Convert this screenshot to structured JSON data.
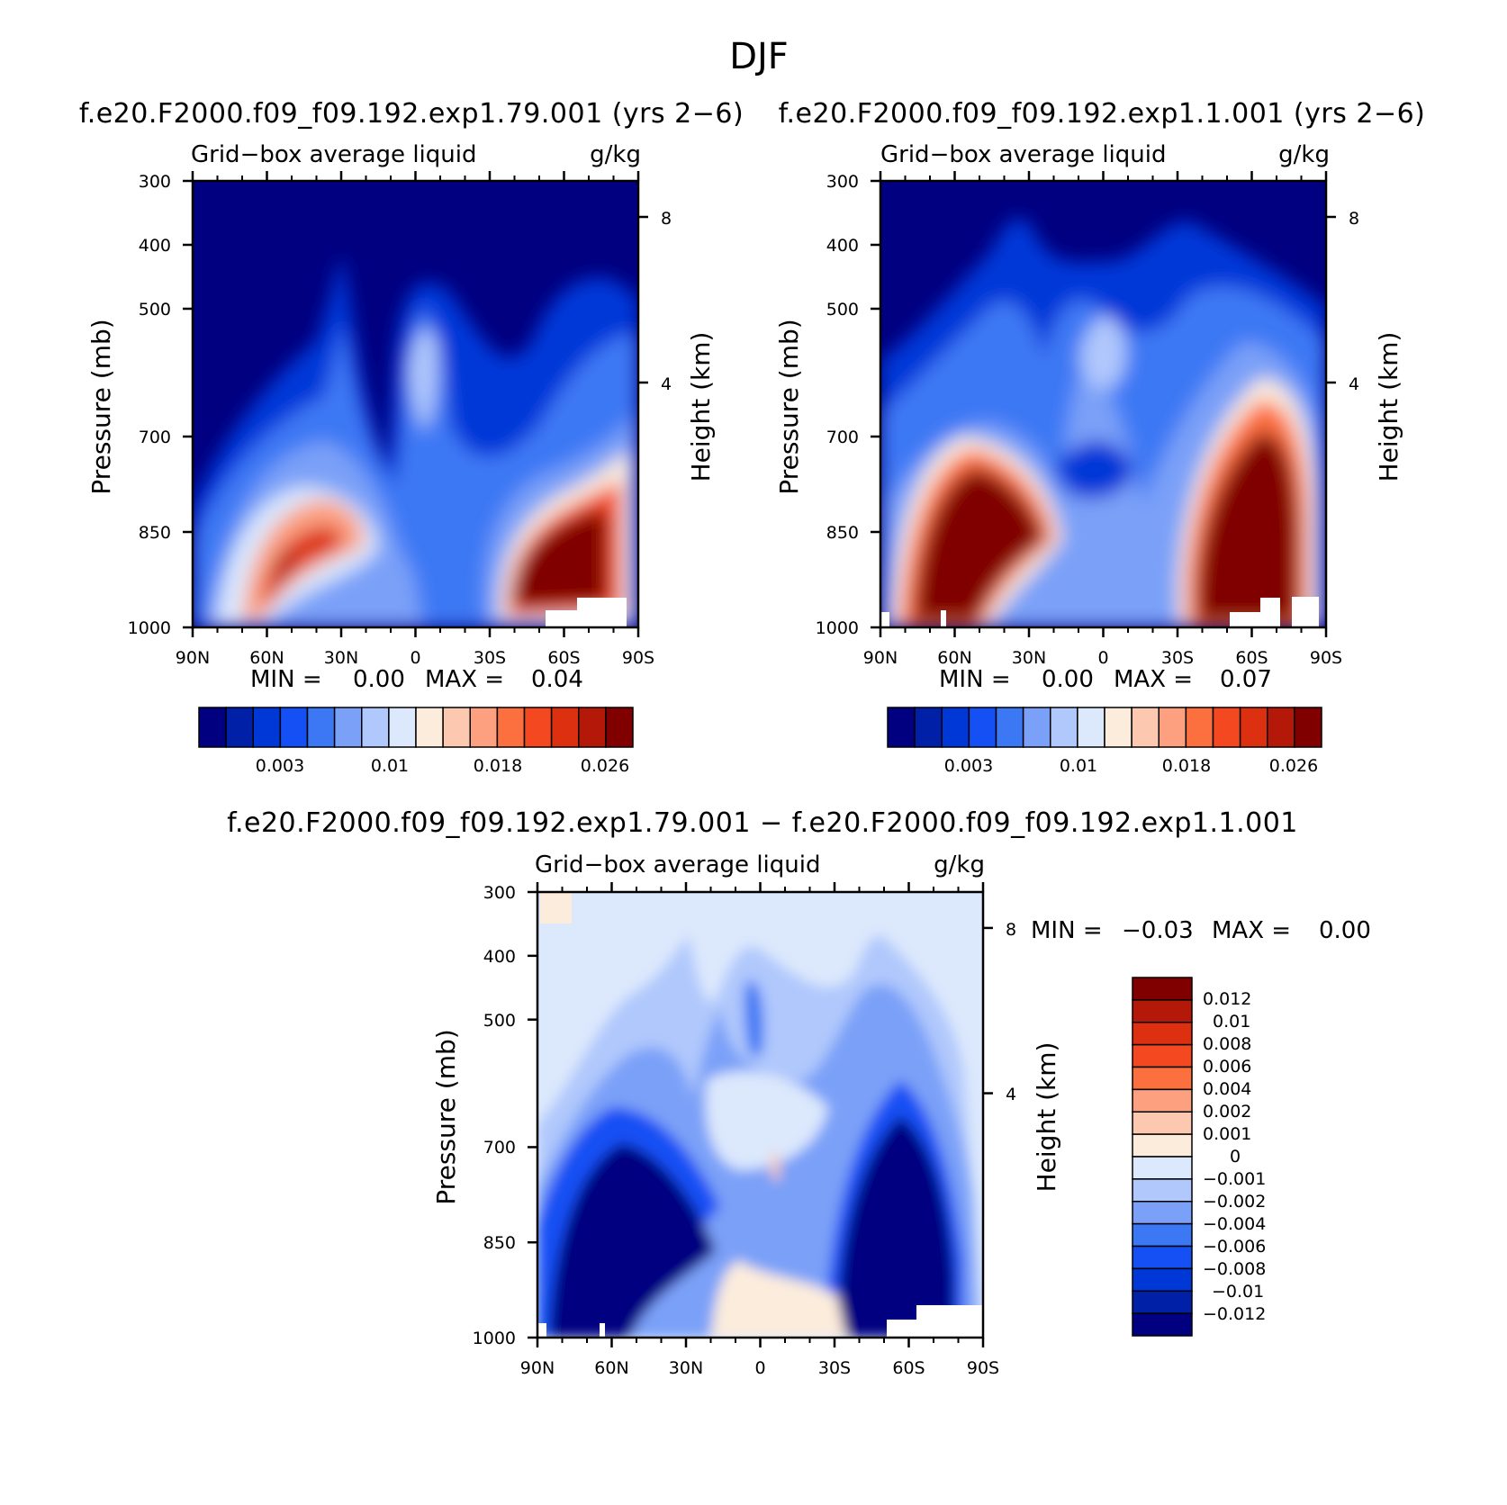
{
  "figure_title": "DJF",
  "colors": {
    "seq": [
      "#000080",
      "#0020a8",
      "#0038d8",
      "#1450f4",
      "#3c78f4",
      "#7aa0f8",
      "#b0c8fc",
      "#dce8fc",
      "#fcecdc",
      "#fcc8b0",
      "#fca080",
      "#fc7040",
      "#f44820",
      "#dc3010",
      "#b41808",
      "#800000"
    ],
    "div": [
      "#000080",
      "#0020a8",
      "#0038d8",
      "#1450f4",
      "#3c78f4",
      "#7aa0f8",
      "#b0c8fc",
      "#dce8fc",
      "#fcecdc",
      "#fcc8b0",
      "#fca080",
      "#fc7040",
      "#f44820",
      "#dc3010",
      "#b41808",
      "#800000"
    ]
  },
  "chart_data": [
    {
      "type": "contour",
      "title": "f.e20.F2000.f09_f09.192.exp1.79.001 (yrs 2−6)",
      "variable": "Grid−box average liquid",
      "units": "g/kg",
      "xlabel": "",
      "ylabel": "Pressure (mb)",
      "y2label": "Height (km)",
      "x_ticks": [
        "90N",
        "60N",
        "30N",
        "0",
        "30S",
        "60S",
        "90S"
      ],
      "y_ticks": [
        "300",
        "400",
        "500",
        "700",
        "850",
        "1000"
      ],
      "y2_ticks": [
        "8",
        "4"
      ],
      "min_label": "MIN =",
      "min_value": "0.00",
      "max_label": "MAX =",
      "max_value": "0.04",
      "colorbar_labels": [
        "0.003",
        "0.01",
        "0.018",
        "0.026"
      ]
    },
    {
      "type": "contour",
      "title": "f.e20.F2000.f09_f09.192.exp1.1.001 (yrs 2−6)",
      "variable": "Grid−box average liquid",
      "units": "g/kg",
      "xlabel": "",
      "ylabel": "Pressure (mb)",
      "y2label": "Height (km)",
      "x_ticks": [
        "90N",
        "60N",
        "30N",
        "0",
        "30S",
        "60S",
        "90S"
      ],
      "y_ticks": [
        "300",
        "400",
        "500",
        "700",
        "850",
        "1000"
      ],
      "y2_ticks": [
        "8",
        "4"
      ],
      "min_label": "MIN =",
      "min_value": "0.00",
      "max_label": "MAX =",
      "max_value": "0.07",
      "colorbar_labels": [
        "0.003",
        "0.01",
        "0.018",
        "0.026"
      ]
    },
    {
      "type": "contour",
      "title": "f.e20.F2000.f09_f09.192.exp1.79.001 − f.e20.F2000.f09_f09.192.exp1.1.001",
      "variable": "Grid−box average liquid",
      "units": "g/kg",
      "xlabel": "",
      "ylabel": "Pressure (mb)",
      "y2label": "Height (km)",
      "x_ticks": [
        "90N",
        "60N",
        "30N",
        "0",
        "30S",
        "60S",
        "90S"
      ],
      "y_ticks": [
        "300",
        "400",
        "500",
        "700",
        "850",
        "1000"
      ],
      "y2_ticks": [
        "8",
        "4"
      ],
      "min_label": "MIN =",
      "min_value": "−0.03",
      "max_label": "MAX =",
      "max_value": "0.00",
      "colorbar_labels": [
        "0.012",
        "0.01",
        "0.008",
        "0.006",
        "0.004",
        "0.002",
        "0.001",
        "0",
        "−0.001",
        "−0.002",
        "−0.004",
        "−0.006",
        "−0.008",
        "−0.01",
        "−0.012"
      ]
    }
  ]
}
